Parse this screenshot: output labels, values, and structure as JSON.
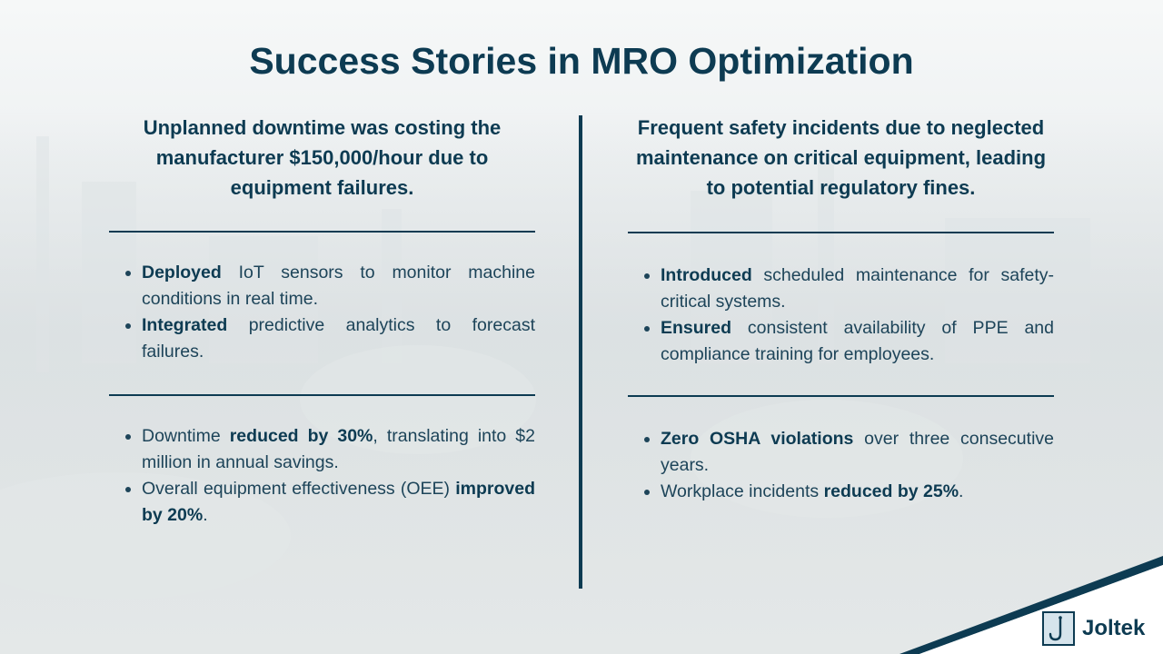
{
  "title": "Success Stories in MRO Optimization",
  "left": {
    "heading": "Unplanned downtime was costing the manufacturer $150,000/hour due to equipment failures.",
    "actions": [
      {
        "bold": "Deployed",
        "text": " IoT sensors to monitor machine conditions in real time."
      },
      {
        "bold": "Integrated",
        "text": " predictive analytics to forecast failures."
      }
    ],
    "results": [
      {
        "pre": "Downtime ",
        "bold": "reduced by 30%",
        "post": ", translating into $2 million in annual savings."
      },
      {
        "pre": "Overall equipment effectiveness (OEE) ",
        "bold": "improved by 20%",
        "post": "."
      }
    ]
  },
  "right": {
    "heading": "Frequent safety incidents due to neglected maintenance on critical equipment, leading to potential regulatory fines.",
    "actions": [
      {
        "bold": "Introduced",
        "text": " scheduled maintenance for safety-critical systems."
      },
      {
        "bold": "Ensured",
        "text": " consistent availability of PPE and compliance training for employees."
      }
    ],
    "results": [
      {
        "pre": "",
        "bold": "Zero OSHA violations",
        "post": " over three consecutive years."
      },
      {
        "pre": "Workplace incidents ",
        "bold": "reduced by 25%",
        "post": "."
      }
    ]
  },
  "logo": {
    "text": "Joltek",
    "icon": "j-hook-icon"
  },
  "colors": {
    "primary": "#0d3b52",
    "text": "#1d4459",
    "background": "#eef1f2"
  }
}
